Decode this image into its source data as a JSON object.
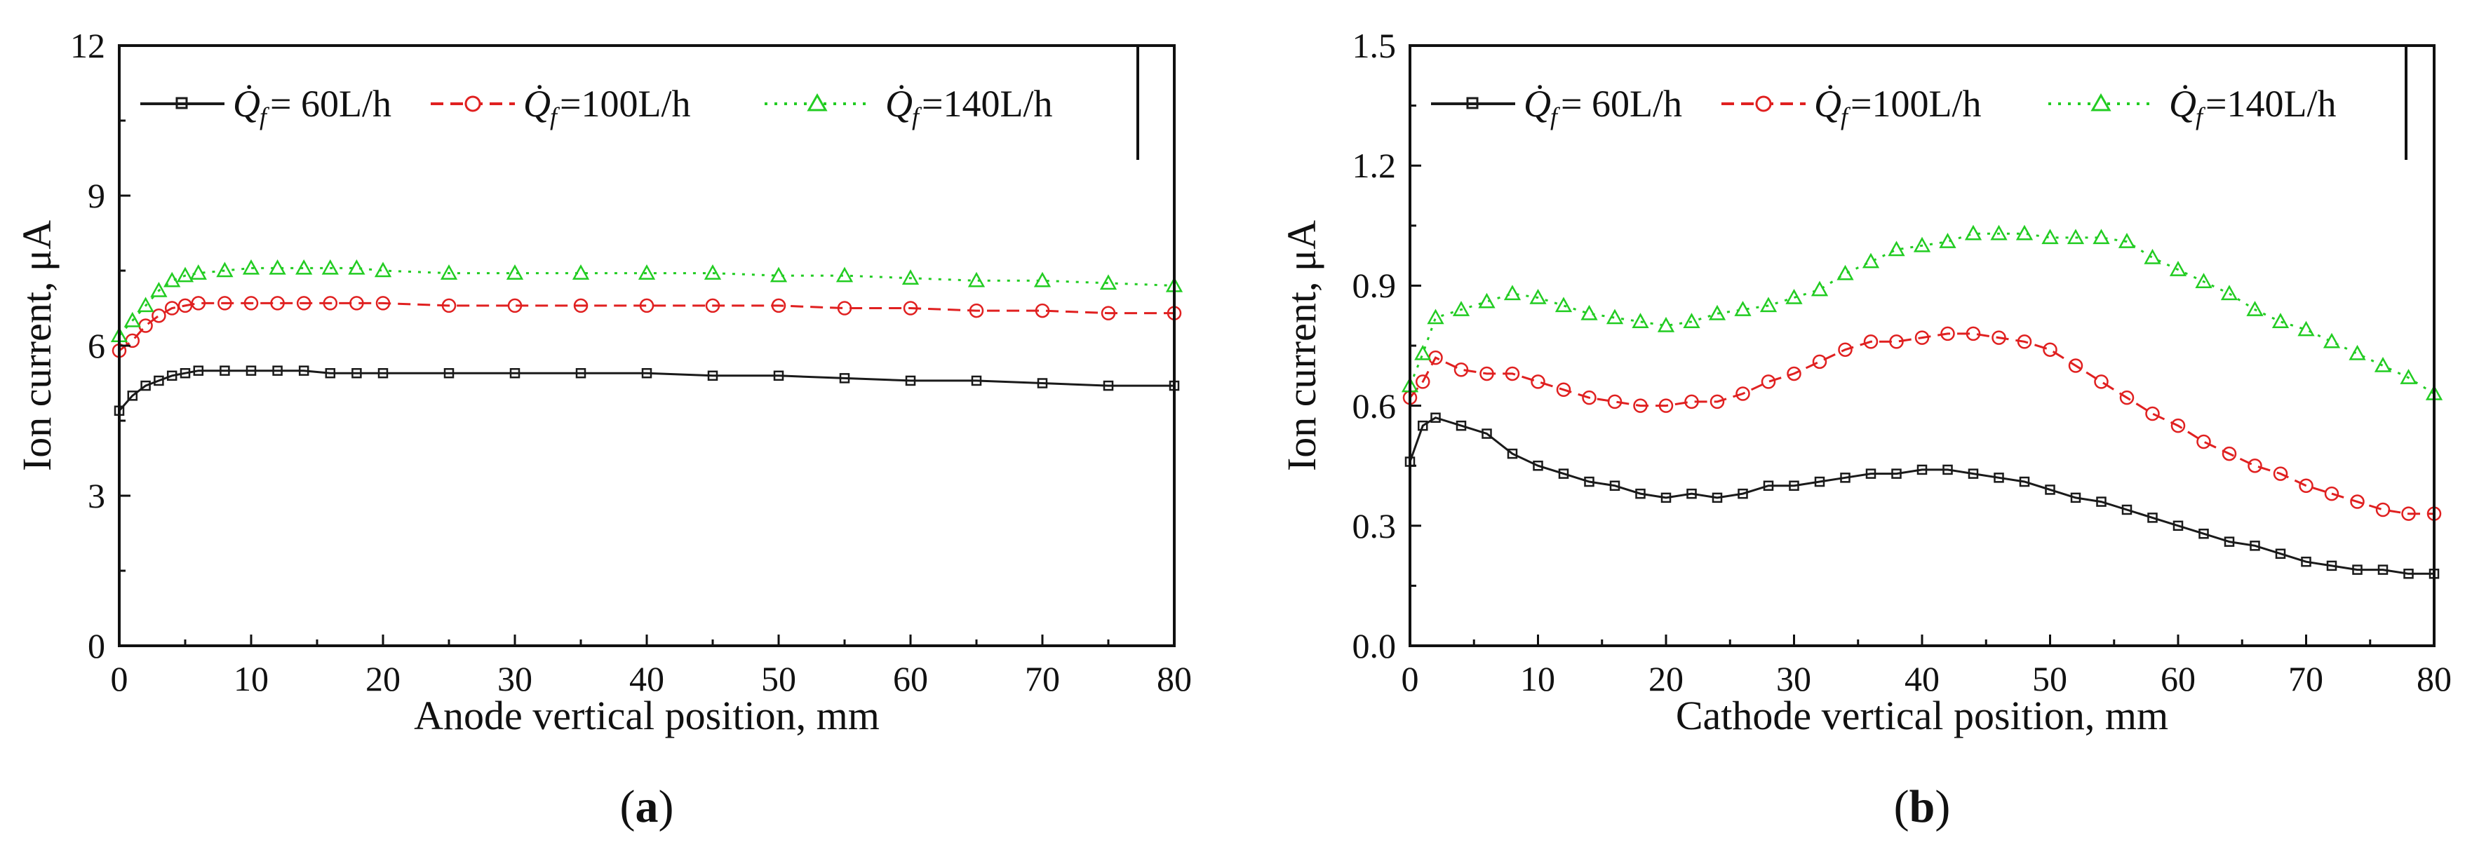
{
  "legend_symbol": "Q̇",
  "legend_subscript": "f",
  "panels": [
    {
      "label_open": "(",
      "label_letter": "a",
      "label_close": ")",
      "ylabel": "Ion current, μA",
      "xlabel": "Anode vertical position, mm",
      "ytick_labels": [
        "0",
        "3",
        "6",
        "9",
        "12"
      ],
      "xtick_labels": [
        "0",
        "10",
        "20",
        "30",
        "40",
        "50",
        "60",
        "70",
        "80"
      ],
      "legend": [
        "= 60L/h",
        "=100L/h",
        "=140L/h"
      ]
    },
    {
      "label_open": "(",
      "label_letter": "b",
      "label_close": ")",
      "ylabel": "Ion current, μA",
      "xlabel": "Cathode vertical position, mm",
      "ytick_labels": [
        "0.0",
        "0.3",
        "0.6",
        "0.9",
        "1.2",
        "1.5"
      ],
      "xtick_labels": [
        "0",
        "10",
        "20",
        "30",
        "40",
        "50",
        "60",
        "70",
        "80"
      ],
      "legend": [
        "= 60L/h",
        "=100L/h",
        "=140L/h"
      ]
    }
  ],
  "colors": {
    "s60": "#1a1a1a",
    "s100": "#e02020",
    "s140": "#22cc22",
    "axis": "#111111"
  },
  "chart_data": [
    {
      "type": "line",
      "title": "(a)",
      "xlabel": "Anode vertical position, mm",
      "ylabel": "Ion current, μA",
      "xlim": [
        0,
        80
      ],
      "ylim": [
        0,
        12
      ],
      "series": [
        {
          "name": "Q̇f= 60L/h",
          "marker": "square",
          "x": [
            0,
            1,
            2,
            3,
            4,
            5,
            6,
            8,
            10,
            12,
            14,
            16,
            18,
            20,
            25,
            30,
            35,
            40,
            45,
            50,
            55,
            60,
            65,
            70,
            75,
            80
          ],
          "values": [
            4.7,
            5.0,
            5.2,
            5.3,
            5.4,
            5.45,
            5.5,
            5.5,
            5.5,
            5.5,
            5.5,
            5.45,
            5.45,
            5.45,
            5.45,
            5.45,
            5.45,
            5.45,
            5.4,
            5.4,
            5.35,
            5.3,
            5.3,
            5.25,
            5.2,
            5.2
          ]
        },
        {
          "name": "Q̇f=100L/h",
          "marker": "circle",
          "x": [
            0,
            1,
            2,
            3,
            4,
            5,
            6,
            8,
            10,
            12,
            14,
            16,
            18,
            20,
            25,
            30,
            35,
            40,
            45,
            50,
            55,
            60,
            65,
            70,
            75,
            80
          ],
          "values": [
            5.9,
            6.1,
            6.4,
            6.6,
            6.75,
            6.8,
            6.85,
            6.85,
            6.85,
            6.85,
            6.85,
            6.85,
            6.85,
            6.85,
            6.8,
            6.8,
            6.8,
            6.8,
            6.8,
            6.8,
            6.75,
            6.75,
            6.7,
            6.7,
            6.65,
            6.65
          ]
        },
        {
          "name": "Q̇f=140L/h",
          "marker": "triangle",
          "x": [
            0,
            1,
            2,
            3,
            4,
            5,
            6,
            8,
            10,
            12,
            14,
            16,
            18,
            20,
            25,
            30,
            35,
            40,
            45,
            50,
            55,
            60,
            65,
            70,
            75,
            80
          ],
          "values": [
            6.2,
            6.5,
            6.8,
            7.1,
            7.3,
            7.4,
            7.45,
            7.5,
            7.55,
            7.55,
            7.55,
            7.55,
            7.55,
            7.5,
            7.45,
            7.45,
            7.45,
            7.45,
            7.45,
            7.4,
            7.4,
            7.35,
            7.3,
            7.3,
            7.25,
            7.2
          ]
        }
      ]
    },
    {
      "type": "line",
      "title": "(b)",
      "xlabel": "Cathode vertical position, mm",
      "ylabel": "Ion current, μA",
      "xlim": [
        0,
        80
      ],
      "ylim": [
        0,
        1.5
      ],
      "series": [
        {
          "name": "Q̇f= 60L/h",
          "marker": "square",
          "x": [
            0,
            1,
            2,
            4,
            6,
            8,
            10,
            12,
            14,
            16,
            18,
            20,
            22,
            24,
            26,
            28,
            30,
            32,
            34,
            36,
            38,
            40,
            42,
            44,
            46,
            48,
            50,
            52,
            54,
            56,
            58,
            60,
            62,
            64,
            66,
            68,
            70,
            72,
            74,
            76,
            78,
            80
          ],
          "values": [
            0.46,
            0.55,
            0.57,
            0.55,
            0.53,
            0.48,
            0.45,
            0.43,
            0.41,
            0.4,
            0.38,
            0.37,
            0.38,
            0.37,
            0.38,
            0.4,
            0.4,
            0.41,
            0.42,
            0.43,
            0.43,
            0.44,
            0.44,
            0.43,
            0.42,
            0.41,
            0.39,
            0.37,
            0.36,
            0.34,
            0.32,
            0.3,
            0.28,
            0.26,
            0.25,
            0.23,
            0.21,
            0.2,
            0.19,
            0.19,
            0.18,
            0.18
          ]
        },
        {
          "name": "Q̇f=100L/h",
          "marker": "circle",
          "x": [
            0,
            1,
            2,
            4,
            6,
            8,
            10,
            12,
            14,
            16,
            18,
            20,
            22,
            24,
            26,
            28,
            30,
            32,
            34,
            36,
            38,
            40,
            42,
            44,
            46,
            48,
            50,
            52,
            54,
            56,
            58,
            60,
            62,
            64,
            66,
            68,
            70,
            72,
            74,
            76,
            78,
            80
          ],
          "values": [
            0.62,
            0.66,
            0.72,
            0.69,
            0.68,
            0.68,
            0.66,
            0.64,
            0.62,
            0.61,
            0.6,
            0.6,
            0.61,
            0.61,
            0.63,
            0.66,
            0.68,
            0.71,
            0.74,
            0.76,
            0.76,
            0.77,
            0.78,
            0.78,
            0.77,
            0.76,
            0.74,
            0.7,
            0.66,
            0.62,
            0.58,
            0.55,
            0.51,
            0.48,
            0.45,
            0.43,
            0.4,
            0.38,
            0.36,
            0.34,
            0.33,
            0.33
          ]
        },
        {
          "name": "Q̇f=140L/h",
          "marker": "triangle",
          "x": [
            0,
            1,
            2,
            4,
            6,
            8,
            10,
            12,
            14,
            16,
            18,
            20,
            22,
            24,
            26,
            28,
            30,
            32,
            34,
            36,
            38,
            40,
            42,
            44,
            46,
            48,
            50,
            52,
            54,
            56,
            58,
            60,
            62,
            64,
            66,
            68,
            70,
            72,
            74,
            76,
            78,
            80
          ],
          "values": [
            0.65,
            0.73,
            0.82,
            0.84,
            0.86,
            0.88,
            0.87,
            0.85,
            0.83,
            0.82,
            0.81,
            0.8,
            0.81,
            0.83,
            0.84,
            0.85,
            0.87,
            0.89,
            0.93,
            0.96,
            0.99,
            1.0,
            1.01,
            1.03,
            1.03,
            1.03,
            1.02,
            1.02,
            1.02,
            1.01,
            0.97,
            0.94,
            0.91,
            0.88,
            0.84,
            0.81,
            0.79,
            0.76,
            0.73,
            0.7,
            0.67,
            0.63
          ]
        }
      ]
    }
  ]
}
